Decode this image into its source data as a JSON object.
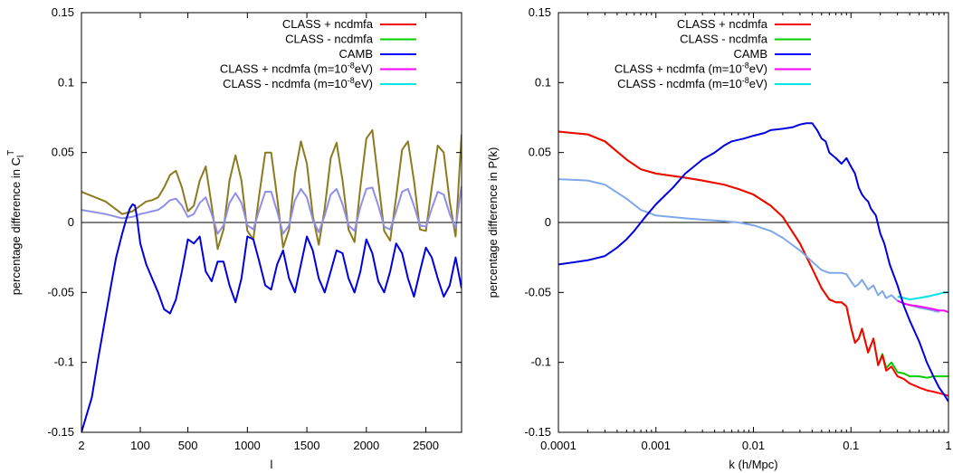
{
  "chart_data": [
    {
      "type": "line",
      "xlabel": "l",
      "ylabel_main": "percentage difference in C",
      "ylabel_sub": "l",
      "ylabel_sup": "T",
      "ylim": [
        -0.15,
        0.15
      ],
      "xscale": "mixed (log below 100, linear above)",
      "xlim": [
        2,
        2800
      ],
      "grid": false,
      "legend_position": "top-right",
      "x_ticks": [
        "2",
        "100",
        "500",
        "1000",
        "1500",
        "2000",
        "2500"
      ],
      "y_ticks": [
        "-0.15",
        "-0.1",
        "-0.05",
        "0",
        "0.05",
        "0.1",
        "0.15"
      ],
      "legend": [
        {
          "text": "CLASS + ncdmfa",
          "color": "#ff0000"
        },
        {
          "text": "CLASS - ncdmfa",
          "color": "#00cc00"
        },
        {
          "text": "CAMB",
          "color": "#0000ff"
        },
        {
          "pre": "CLASS + ncdmfa (m=10",
          "sup": "-8",
          "post": "eV)",
          "color": "#ff00ff"
        },
        {
          "pre": "CLASS - ncdmfa (m=10",
          "sup": "-8",
          "post": "eV)",
          "color": "#00e5e5"
        }
      ],
      "series": [
        {
          "color": "#8c7a1e",
          "x": [
            2,
            10,
            30,
            60,
            100,
            150,
            200,
            250,
            300,
            350,
            400,
            450,
            500,
            550,
            600,
            650,
            700,
            750,
            800,
            850,
            900,
            950,
            1000,
            1050,
            1100,
            1150,
            1200,
            1250,
            1300,
            1350,
            1400,
            1450,
            1500,
            1550,
            1600,
            1650,
            1700,
            1750,
            1800,
            1850,
            1900,
            1950,
            2000,
            2050,
            2100,
            2150,
            2200,
            2250,
            2300,
            2350,
            2400,
            2450,
            2500,
            2550,
            2600,
            2650,
            2700,
            2750,
            2800
          ],
          "values": [
            0.022,
            0.015,
            0.006,
            0.008,
            0.012,
            0.015,
            0.016,
            0.018,
            0.025,
            0.034,
            0.037,
            0.025,
            0.008,
            0.012,
            0.03,
            0.04,
            0.012,
            -0.019,
            -0.005,
            0.03,
            0.048,
            0.03,
            -0.006,
            -0.012,
            0.02,
            0.05,
            0.05,
            0.018,
            -0.018,
            -0.005,
            0.035,
            0.058,
            0.042,
            0.005,
            -0.016,
            0.01,
            0.046,
            0.057,
            0.03,
            -0.005,
            -0.014,
            0.025,
            0.06,
            0.066,
            0.03,
            -0.006,
            -0.013,
            0.018,
            0.052,
            0.058,
            0.03,
            -0.005,
            -0.006,
            0.025,
            0.055,
            0.05,
            0.015,
            -0.01,
            0.063
          ]
        },
        {
          "color": "#8f8fe8",
          "x": [
            2,
            10,
            30,
            60,
            100,
            150,
            200,
            250,
            300,
            350,
            400,
            450,
            500,
            550,
            600,
            650,
            700,
            750,
            800,
            850,
            900,
            950,
            1000,
            1050,
            1100,
            1150,
            1200,
            1250,
            1300,
            1350,
            1400,
            1450,
            1500,
            1550,
            1600,
            1650,
            1700,
            1750,
            1800,
            1850,
            1900,
            1950,
            2000,
            2050,
            2100,
            2150,
            2200,
            2250,
            2300,
            2350,
            2400,
            2450,
            2500,
            2550,
            2600,
            2650,
            2700,
            2750,
            2800
          ],
          "values": [
            0.009,
            0.006,
            0.003,
            0.004,
            0.006,
            0.007,
            0.008,
            0.009,
            0.012,
            0.016,
            0.017,
            0.012,
            0.004,
            0.006,
            0.014,
            0.018,
            0.006,
            -0.008,
            -0.002,
            0.014,
            0.021,
            0.014,
            -0.002,
            -0.005,
            0.009,
            0.022,
            0.022,
            0.008,
            -0.008,
            -0.002,
            0.016,
            0.024,
            0.018,
            0.002,
            -0.007,
            0.005,
            0.02,
            0.024,
            0.013,
            -0.002,
            -0.006,
            0.011,
            0.024,
            0.025,
            0.012,
            -0.003,
            -0.005,
            0.008,
            0.022,
            0.024,
            0.012,
            -0.002,
            -0.003,
            0.01,
            0.022,
            0.02,
            0.006,
            -0.004,
            0.026
          ]
        },
        {
          "color": "#0000dd",
          "x": [
            2,
            4,
            6,
            10,
            15,
            20,
            30,
            40,
            50,
            60,
            70,
            80,
            90,
            100,
            150,
            200,
            250,
            300,
            350,
            400,
            450,
            500,
            550,
            600,
            650,
            700,
            750,
            800,
            850,
            900,
            950,
            1000,
            1050,
            1100,
            1150,
            1200,
            1250,
            1300,
            1350,
            1400,
            1450,
            1500,
            1550,
            1600,
            1650,
            1700,
            1750,
            1800,
            1850,
            1900,
            1950,
            2000,
            2050,
            2100,
            2150,
            2200,
            2250,
            2300,
            2350,
            2400,
            2450,
            2500,
            2550,
            2600,
            2650,
            2700,
            2750,
            2800
          ],
          "values": [
            -0.15,
            -0.125,
            -0.098,
            -0.067,
            -0.042,
            -0.025,
            -0.008,
            0.003,
            0.01,
            0.013,
            0.012,
            0.004,
            -0.006,
            -0.015,
            -0.03,
            -0.04,
            -0.05,
            -0.062,
            -0.065,
            -0.055,
            -0.035,
            -0.012,
            -0.015,
            -0.01,
            -0.035,
            -0.042,
            -0.028,
            -0.028,
            -0.045,
            -0.057,
            -0.04,
            -0.01,
            -0.012,
            -0.028,
            -0.045,
            -0.048,
            -0.03,
            -0.02,
            -0.04,
            -0.05,
            -0.03,
            -0.01,
            -0.02,
            -0.04,
            -0.05,
            -0.035,
            -0.02,
            -0.022,
            -0.04,
            -0.05,
            -0.035,
            -0.012,
            -0.022,
            -0.042,
            -0.05,
            -0.035,
            -0.015,
            -0.022,
            -0.04,
            -0.053,
            -0.035,
            -0.018,
            -0.025,
            -0.04,
            -0.053,
            -0.045,
            -0.025,
            -0.047
          ]
        }
      ]
    },
    {
      "type": "line",
      "xlabel": "k   (h/Mpc)",
      "ylabel_main": "percentage difference in P(k)",
      "ylim": [
        -0.15,
        0.15
      ],
      "xscale": "log",
      "xlim": [
        0.0001,
        1
      ],
      "grid": false,
      "legend_position": "top-right",
      "x_ticks": [
        "0.0001",
        "0.001",
        "0.01",
        "0.1",
        "1"
      ],
      "y_ticks": [
        "-0.15",
        "-0.1",
        "-0.05",
        "0",
        "0.05",
        "0.1",
        "0.15"
      ],
      "legend": [
        {
          "text": "CLASS + ncdmfa",
          "color": "#ff0000"
        },
        {
          "text": "CLASS - ncdmfa",
          "color": "#00cc00"
        },
        {
          "text": "CAMB",
          "color": "#0000ff"
        },
        {
          "pre": "CLASS + ncdmfa (m=10",
          "sup": "-8",
          "post": "eV)",
          "color": "#ff00ff"
        },
        {
          "pre": "CLASS - ncdmfa (m=10",
          "sup": "-8",
          "post": "eV)",
          "color": "#00e5e5"
        }
      ],
      "series": [
        {
          "color": "#00cc00",
          "x": [
            0.0001,
            0.0002,
            0.0003,
            0.0005,
            0.0007,
            0.001,
            0.002,
            0.003,
            0.005,
            0.007,
            0.01,
            0.015,
            0.02,
            0.03,
            0.04,
            0.05,
            0.06,
            0.07,
            0.08,
            0.09,
            0.1,
            0.11,
            0.12,
            0.13,
            0.15,
            0.17,
            0.19,
            0.21,
            0.23,
            0.26,
            0.3,
            0.35,
            0.4,
            0.5,
            0.6,
            0.7,
            0.8,
            0.9,
            1
          ],
          "values": [
            0.065,
            0.063,
            0.058,
            0.045,
            0.038,
            0.035,
            0.032,
            0.03,
            0.027,
            0.024,
            0.02,
            0.012,
            0.004,
            -0.015,
            -0.033,
            -0.047,
            -0.055,
            -0.057,
            -0.057,
            -0.06,
            -0.075,
            -0.086,
            -0.083,
            -0.076,
            -0.093,
            -0.083,
            -0.102,
            -0.094,
            -0.104,
            -0.1,
            -0.107,
            -0.108,
            -0.11,
            -0.11,
            -0.111,
            -0.11,
            -0.11,
            -0.11,
            -0.11
          ]
        },
        {
          "color": "#ff0000",
          "x": [
            0.0001,
            0.0002,
            0.0003,
            0.0005,
            0.0007,
            0.001,
            0.002,
            0.003,
            0.005,
            0.007,
            0.01,
            0.015,
            0.02,
            0.03,
            0.04,
            0.05,
            0.06,
            0.07,
            0.08,
            0.09,
            0.1,
            0.11,
            0.12,
            0.13,
            0.15,
            0.17,
            0.19,
            0.21,
            0.23,
            0.26,
            0.3,
            0.35,
            0.4,
            0.5,
            0.6,
            0.7,
            0.8,
            0.9,
            1
          ],
          "values": [
            0.065,
            0.063,
            0.058,
            0.045,
            0.038,
            0.035,
            0.032,
            0.03,
            0.027,
            0.024,
            0.02,
            0.012,
            0.004,
            -0.015,
            -0.033,
            -0.047,
            -0.055,
            -0.057,
            -0.057,
            -0.06,
            -0.075,
            -0.086,
            -0.083,
            -0.076,
            -0.093,
            -0.083,
            -0.102,
            -0.095,
            -0.106,
            -0.103,
            -0.11,
            -0.112,
            -0.115,
            -0.118,
            -0.12,
            -0.121,
            -0.122,
            -0.123,
            -0.124
          ]
        },
        {
          "color": "#7fa8e8",
          "x": [
            0.0001,
            0.0002,
            0.0003,
            0.0005,
            0.0007,
            0.001,
            0.002,
            0.003,
            0.005,
            0.007,
            0.01,
            0.015,
            0.02,
            0.03,
            0.04,
            0.05,
            0.06,
            0.07,
            0.08,
            0.09,
            0.1,
            0.11,
            0.12,
            0.13,
            0.15,
            0.17,
            0.19,
            0.21,
            0.23,
            0.26,
            0.3,
            0.35,
            0.4,
            0.5,
            0.6,
            0.7,
            0.8
          ],
          "values": [
            0.031,
            0.03,
            0.027,
            0.017,
            0.009,
            0.005,
            0.003,
            0.002,
            0.001,
            0.0,
            -0.002,
            -0.006,
            -0.011,
            -0.02,
            -0.028,
            -0.034,
            -0.036,
            -0.036,
            -0.036,
            -0.037,
            -0.042,
            -0.046,
            -0.044,
            -0.041,
            -0.048,
            -0.045,
            -0.052,
            -0.049,
            -0.054,
            -0.052,
            -0.056,
            -0.058,
            -0.059,
            -0.061,
            -0.062,
            -0.063,
            -0.064
          ]
        },
        {
          "color": "#00e5e5",
          "x": [
            0.3,
            0.35,
            0.4,
            0.5,
            0.6,
            0.7,
            0.8,
            0.9,
            1
          ],
          "values": [
            -0.053,
            -0.054,
            -0.055,
            -0.054,
            -0.053,
            -0.052,
            -0.051,
            -0.05,
            -0.05
          ]
        },
        {
          "color": "#ff00ff",
          "x": [
            0.3,
            0.35,
            0.4,
            0.5,
            0.6,
            0.7,
            0.8,
            0.9,
            1
          ],
          "values": [
            -0.056,
            -0.058,
            -0.059,
            -0.06,
            -0.061,
            -0.062,
            -0.063,
            -0.063,
            -0.064
          ]
        },
        {
          "color": "#0000dd",
          "x": [
            0.0001,
            0.0002,
            0.0003,
            0.0004,
            0.0005,
            0.0006,
            0.0007,
            0.0008,
            0.001,
            0.0015,
            0.002,
            0.003,
            0.004,
            0.005,
            0.006,
            0.008,
            0.01,
            0.013,
            0.015,
            0.02,
            0.025,
            0.03,
            0.035,
            0.04,
            0.045,
            0.05,
            0.055,
            0.06,
            0.07,
            0.08,
            0.09,
            0.1,
            0.11,
            0.12,
            0.13,
            0.14,
            0.15,
            0.16,
            0.18,
            0.2,
            0.22,
            0.25,
            0.3,
            0.35,
            0.4,
            0.5,
            0.6,
            0.7,
            0.8,
            0.9,
            1
          ],
          "values": [
            -0.03,
            -0.027,
            -0.024,
            -0.018,
            -0.012,
            -0.006,
            0.0,
            0.005,
            0.013,
            0.025,
            0.035,
            0.045,
            0.05,
            0.055,
            0.058,
            0.06,
            0.062,
            0.064,
            0.066,
            0.067,
            0.068,
            0.07,
            0.071,
            0.071,
            0.066,
            0.06,
            0.058,
            0.05,
            0.046,
            0.042,
            0.046,
            0.04,
            0.035,
            0.025,
            0.02,
            0.017,
            0.015,
            0.01,
            0.005,
            -0.008,
            -0.015,
            -0.03,
            -0.045,
            -0.06,
            -0.07,
            -0.085,
            -0.1,
            -0.11,
            -0.118,
            -0.123,
            -0.128
          ]
        }
      ]
    }
  ]
}
